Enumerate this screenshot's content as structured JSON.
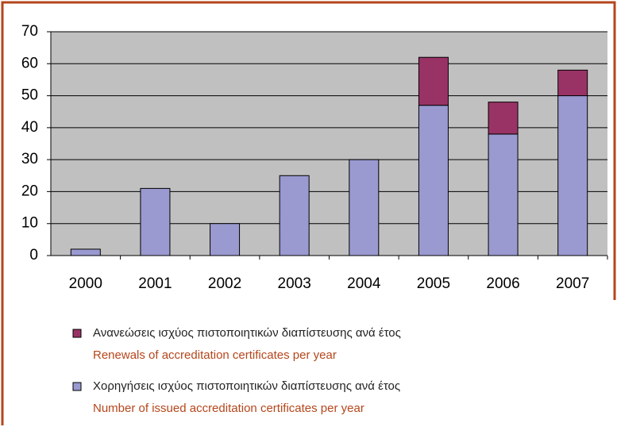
{
  "chart_data": {
    "type": "stacked_bar",
    "categories": [
      "2000",
      "2001",
      "2002",
      "2003",
      "2004",
      "2005",
      "2006",
      "2007"
    ],
    "series": [
      {
        "name": "Χορηγήσεις ισχύος πιστοποιητικών διαπίστευσης ανά έτος",
        "name_en": "Number of issued accreditation certificates per year",
        "color": "#9a9ad0",
        "values": [
          2,
          21,
          10,
          25,
          30,
          47,
          38,
          50
        ]
      },
      {
        "name": "Ανανεώσεις ισχύος πιστοποιητικών διαπίστευσης ανά έτος",
        "name_en": "Renewals of accreditation certificates per year",
        "color": "#993366",
        "values": [
          0,
          0,
          0,
          0,
          0,
          15,
          10,
          8
        ]
      }
    ],
    "ylim": [
      0,
      70
    ],
    "yticks": [
      0,
      10,
      20,
      30,
      40,
      50,
      60,
      70
    ],
    "grid": true
  }
}
